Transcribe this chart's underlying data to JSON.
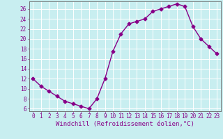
{
  "x": [
    0,
    1,
    2,
    3,
    4,
    5,
    6,
    7,
    8,
    9,
    10,
    11,
    12,
    13,
    14,
    15,
    16,
    17,
    18,
    19,
    20,
    21,
    22,
    23
  ],
  "y": [
    12,
    10.5,
    9.5,
    8.5,
    7.5,
    7,
    6.5,
    6,
    8,
    12,
    17.5,
    21,
    23,
    23.5,
    24,
    25.5,
    26,
    26.5,
    27,
    26.5,
    22.5,
    20,
    18.5,
    17
  ],
  "line_color": "#880088",
  "marker": "D",
  "marker_size": 2.5,
  "bg_color": "#c8eef0",
  "grid_color": "#ffffff",
  "xlabel": "Windchill (Refroidissement éolien,°C)",
  "ylim": [
    5.5,
    27.5
  ],
  "xlim": [
    -0.5,
    23.5
  ],
  "yticks": [
    6,
    8,
    10,
    12,
    14,
    16,
    18,
    20,
    22,
    24,
    26
  ],
  "xticks": [
    0,
    1,
    2,
    3,
    4,
    5,
    6,
    7,
    8,
    9,
    10,
    11,
    12,
    13,
    14,
    15,
    16,
    17,
    18,
    19,
    20,
    21,
    22,
    23
  ],
  "tick_color": "#880088",
  "label_color": "#880088",
  "axis_color": "#666666",
  "font_size": 5.5,
  "xlabel_fontsize": 6.5,
  "linewidth": 1.0
}
